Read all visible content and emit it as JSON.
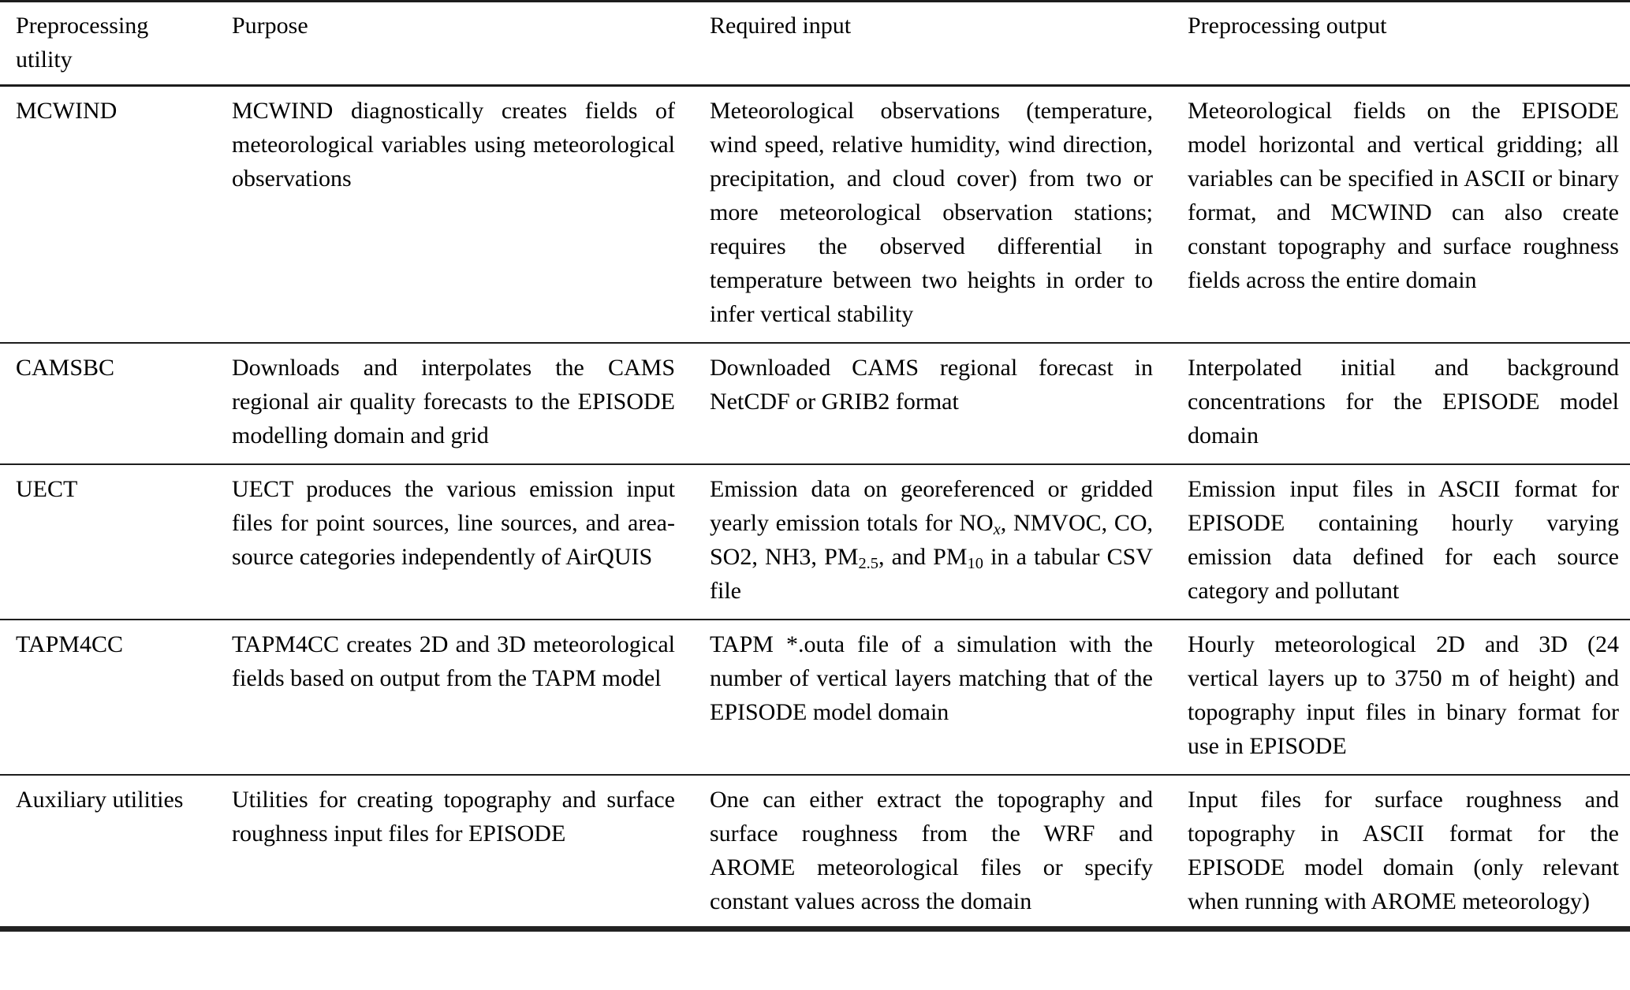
{
  "table": {
    "columns": [
      "Preprocessing utility",
      "Purpose",
      "Required input",
      "Preprocessing output"
    ],
    "rows": [
      {
        "utility": "MCWIND",
        "purpose": "MCWIND diagnostically creates fields of meteorological variables using meteorological observations",
        "input": "Meteorological observations (temperature, wind speed, relative humidity, wind direction, precipitation, and cloud cover) from two or more meteorological observation stations; requires the observed differential in temperature between two heights in order to infer vertical stability",
        "output": "Meteorological fields on the EPISODE model horizontal and vertical gridding; all variables can be specified in ASCII or binary format, and MCWIND can also create constant topography and surface roughness fields across the entire domain"
      },
      {
        "utility": "CAMSBC",
        "purpose": "Downloads and interpolates the CAMS regional air quality forecasts to the EPISODE modelling domain and grid",
        "input": "Downloaded CAMS regional forecast in NetCDF or GRIB2 format",
        "output": "Interpolated initial and background concentrations for the EPISODE model domain"
      },
      {
        "utility": "UECT",
        "purpose": "UECT produces the various emission input files for point sources, line sources, and area-source categories independently of AirQUIS",
        "input": [
          {
            "t": "Emission data on georeferenced or gridded yearly emission totals for NO"
          },
          {
            "t": "x",
            "sub": true,
            "italic": true
          },
          {
            "t": ", NMVOC, CO, SO2, NH3, PM"
          },
          {
            "t": "2.5",
            "sub": true
          },
          {
            "t": ", and PM"
          },
          {
            "t": "10",
            "sub": true
          },
          {
            "t": " in a tabular CSV file"
          }
        ],
        "output": "Emission input files in ASCII format for EPISODE containing hourly varying emission data defined for each source category and pollutant"
      },
      {
        "utility": "TAPM4CC",
        "purpose": "TAPM4CC creates 2D and 3D meteorological fields based on output from the TAPM model",
        "input": "TAPM *.outa file of a simulation with the number of vertical layers matching that of the EPISODE model domain",
        "output": "Hourly meteorological 2D and 3D (24 vertical layers up to 3750 m of height) and topography input files in binary format for use in EPISODE"
      },
      {
        "utility": "Auxiliary utilities",
        "purpose": "Utilities for creating topography and surface roughness input files for EPISODE",
        "input": "One can either extract the topography and surface roughness from the WRF and AROME meteorological files or specify constant values across the domain",
        "output": "Input files for surface roughness and topography in ASCII format for the EPISODE model domain (only relevant when running with AROME meteorology)"
      }
    ]
  },
  "colors": {
    "text": "#000000",
    "rule": "#1d1d1d",
    "background": "#ffffff"
  }
}
